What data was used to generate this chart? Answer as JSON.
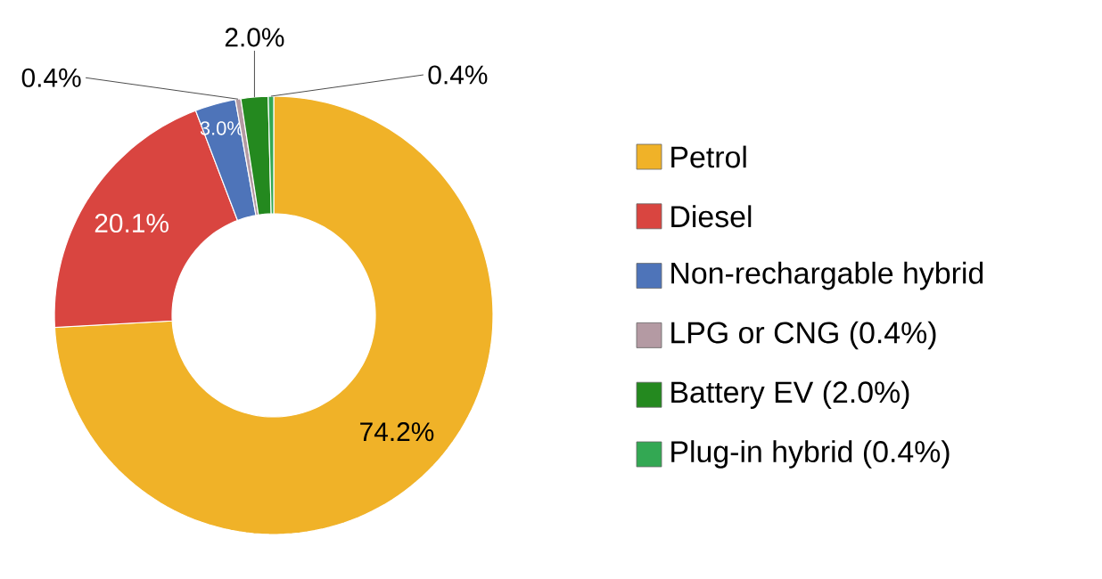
{
  "chart_data": {
    "type": "donut",
    "categories": [
      "Petrol",
      "Diesel",
      "Non-rechargable hybrid",
      "LPG or CNG (0.4%)",
      "Battery EV (2.0%)",
      "Plug-in hybrid (0.4%)"
    ],
    "values": [
      74.2,
      20.1,
      3.0,
      0.4,
      2.0,
      0.4
    ],
    "value_labels": [
      "74.2%",
      "20.1%",
      "3.0%",
      "0.4%",
      "2.0%",
      "0.4%"
    ],
    "colors": [
      "#f0b228",
      "#d94540",
      "#4e74b9",
      "#b49aa3",
      "#24891f",
      "#33a853"
    ],
    "legend": "right"
  }
}
